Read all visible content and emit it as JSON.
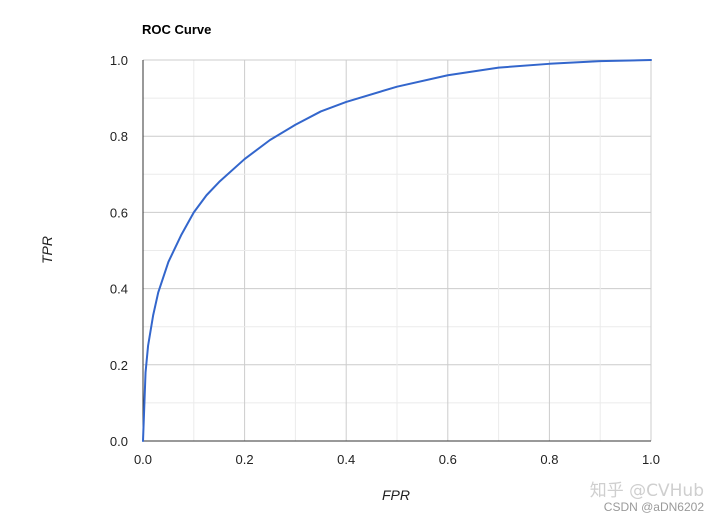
{
  "chart_data": {
    "type": "line",
    "title": "ROC Curve",
    "xlabel": "FPR",
    "ylabel": "TPR",
    "xlim": [
      0,
      1
    ],
    "ylim": [
      0,
      1
    ],
    "grid": true,
    "legend": "none",
    "x_ticks": [
      "0.0",
      "0.2",
      "0.4",
      "0.6",
      "0.8",
      "1.0"
    ],
    "y_ticks": [
      "0.0",
      "0.2",
      "0.4",
      "0.6",
      "0.8",
      "1.0"
    ],
    "series": [
      {
        "color": "#3366cc",
        "x": [
          0.0,
          0.005,
          0.01,
          0.02,
          0.03,
          0.05,
          0.075,
          0.1,
          0.125,
          0.15,
          0.2,
          0.25,
          0.3,
          0.35,
          0.4,
          0.5,
          0.6,
          0.7,
          0.8,
          0.9,
          1.0
        ],
        "y": [
          0.0,
          0.18,
          0.25,
          0.33,
          0.39,
          0.47,
          0.54,
          0.6,
          0.645,
          0.68,
          0.74,
          0.79,
          0.83,
          0.865,
          0.89,
          0.93,
          0.96,
          0.98,
          0.99,
          0.997,
          1.0
        ]
      }
    ]
  },
  "watermark": {
    "main": "知乎 @CVHub",
    "sub": "CSDN @aDN6202"
  }
}
